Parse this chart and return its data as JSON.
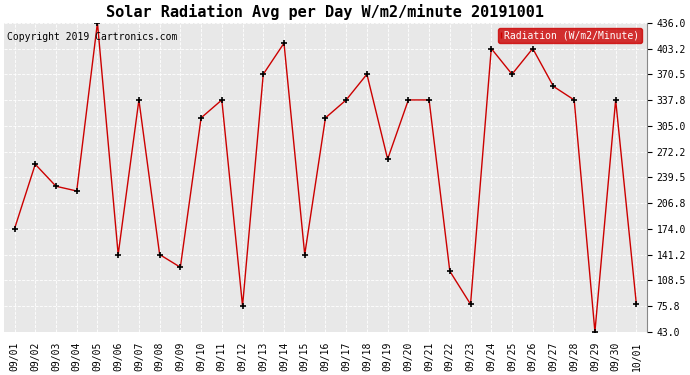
{
  "title": "Solar Radiation Avg per Day W/m2/minute 20191001",
  "copyright": "Copyright 2019 Cartronics.com",
  "legend_label": "Radiation (W/m2/Minute)",
  "dates": [
    "09/01",
    "09/02",
    "09/03",
    "09/04",
    "09/05",
    "09/06",
    "09/07",
    "09/08",
    "09/09",
    "09/10",
    "09/11",
    "09/12",
    "09/13",
    "09/14",
    "09/15",
    "09/16",
    "09/17",
    "09/18",
    "09/19",
    "09/20",
    "09/21",
    "09/22",
    "09/23",
    "09/24",
    "09/25",
    "09/26",
    "09/27",
    "09/28",
    "09/29",
    "09/30",
    "10/01"
  ],
  "values": [
    174.0,
    256.0,
    228.0,
    222.0,
    436.0,
    141.2,
    337.8,
    141.2,
    125.0,
    315.0,
    337.8,
    75.8,
    370.5,
    410.0,
    141.2,
    315.0,
    337.8,
    370.5,
    262.5,
    337.8,
    337.8,
    120.0,
    78.0,
    403.2,
    370.5,
    403.2,
    355.0,
    337.8,
    43.0,
    337.8,
    78.0
  ],
  "line_color": "#cc0000",
  "marker": "+",
  "marker_color": "#000000",
  "background_color": "#ffffff",
  "plot_bg_color": "#e8e8e8",
  "grid_color": "#ffffff",
  "ylim": [
    43.0,
    436.0
  ],
  "yticks": [
    43.0,
    75.8,
    108.5,
    141.2,
    174.0,
    206.8,
    239.5,
    272.2,
    305.0,
    337.8,
    370.5,
    403.2,
    436.0
  ],
  "title_fontsize": 11,
  "copyright_fontsize": 7,
  "tick_fontsize": 7,
  "legend_bg": "#cc0000",
  "legend_text_color": "#ffffff",
  "legend_fontsize": 7
}
